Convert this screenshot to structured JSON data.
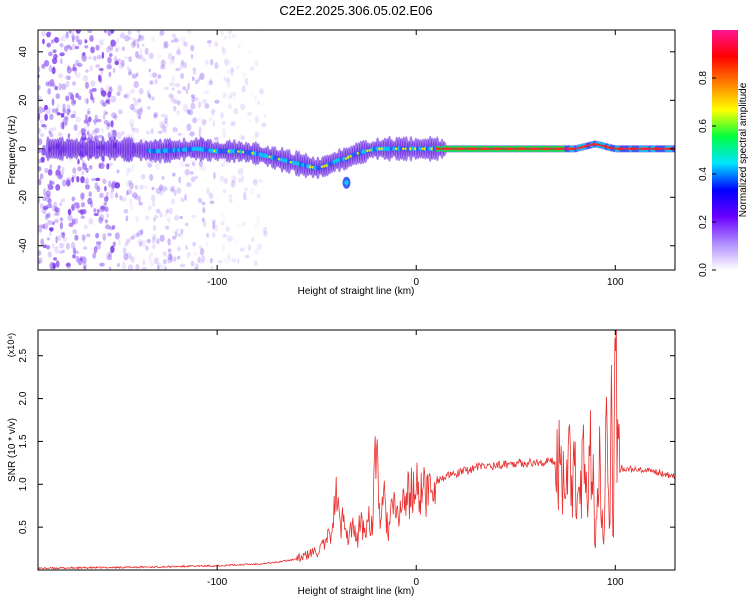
{
  "title": "C2E2.2025.306.05.02.E06",
  "colors": {
    "axis": "#000000",
    "snr_line": "#e8302e",
    "spectrum_dot": "#7b2cf0",
    "ridge_core": "#ff2020"
  },
  "chart_data": [
    {
      "type": "heatmap",
      "title": "C2E2.2025.306.05.02.E06",
      "xlabel": "Height of straight line (km)",
      "ylabel": "Frequency (Hz)",
      "xlim": [
        -190,
        130
      ],
      "ylim": [
        -50,
        49
      ],
      "xticks": [
        -100,
        0,
        100
      ],
      "yticks": [
        -40,
        -20,
        0,
        20,
        40
      ],
      "grid": false,
      "colorbar": {
        "label": "Normalized spectral amplitude",
        "range": [
          0.0,
          1.0
        ],
        "ticks": [
          0.0,
          0.2,
          0.4,
          0.6,
          0.8
        ],
        "colormap": [
          "#ffffff",
          "#b08cff",
          "#6a00ff",
          "#0000ff",
          "#00e5ff",
          "#00ff40",
          "#ffff00",
          "#ff8000",
          "#ff0000",
          "#ff1493"
        ]
      },
      "ridge": {
        "x": [
          -170,
          -150,
          -130,
          -110,
          -100,
          -90,
          -80,
          -70,
          -60,
          -50,
          -45,
          -40,
          -35,
          -30,
          -25,
          -20,
          -10,
          0,
          10,
          20,
          40,
          60,
          80,
          85,
          90,
          95,
          100,
          130
        ],
        "frequency": [
          0,
          0,
          -1,
          0,
          -1,
          -1,
          -2,
          -4,
          -6,
          -8,
          -7,
          -5,
          -4,
          -2,
          -1,
          0,
          0,
          0,
          0,
          0,
          0,
          0,
          0,
          1,
          2,
          1,
          0,
          0
        ]
      },
      "excursion": {
        "x": -35,
        "frequency": -14
      }
    },
    {
      "type": "line",
      "xlabel": "Height of straight line (km)",
      "ylabel": "SNR (10 * v/v)",
      "y_multiplier": "(x10⁴)",
      "xlim": [
        -190,
        130
      ],
      "ylim": [
        0,
        2.8
      ],
      "xticks": [
        -100,
        0,
        100
      ],
      "yticks": [
        0.5,
        1.0,
        1.5,
        2.0,
        2.5
      ],
      "grid": false,
      "series": [
        {
          "x": [
            -190,
            -150,
            -120,
            -100,
            -90,
            -80,
            -70,
            -60,
            -55,
            -50,
            -45,
            -42,
            -40,
            -38,
            -36,
            -34,
            -32,
            -30,
            -28,
            -26,
            -24,
            -22,
            -20,
            -18,
            -16,
            -14,
            -12,
            -10,
            -5,
            0,
            5,
            10,
            20,
            30,
            40,
            50,
            60,
            70,
            75,
            80,
            82,
            84,
            86,
            88,
            90,
            92,
            94,
            95,
            96,
            97,
            98,
            99,
            100,
            101,
            102,
            103,
            105,
            110,
            115,
            120,
            125,
            130
          ],
          "y": [
            0.02,
            0.03,
            0.04,
            0.05,
            0.06,
            0.07,
            0.09,
            0.13,
            0.17,
            0.22,
            0.3,
            0.55,
            0.9,
            0.45,
            0.7,
            0.35,
            0.55,
            0.3,
            0.6,
            0.4,
            0.65,
            0.5,
            1.5,
            0.55,
            0.8,
            0.45,
            0.75,
            0.6,
            0.85,
            0.95,
            0.9,
            1.05,
            1.12,
            1.2,
            1.22,
            1.25,
            1.25,
            1.27,
            1.24,
            1.2,
            0.8,
            1.35,
            0.55,
            1.6,
            0.25,
            1.7,
            0.3,
            1.05,
            2.45,
            0.6,
            1.8,
            0.1,
            2.8,
            1.3,
            1.15,
            1.2,
            1.18,
            1.17,
            1.15,
            1.15,
            1.12,
            1.1
          ]
        }
      ]
    }
  ]
}
